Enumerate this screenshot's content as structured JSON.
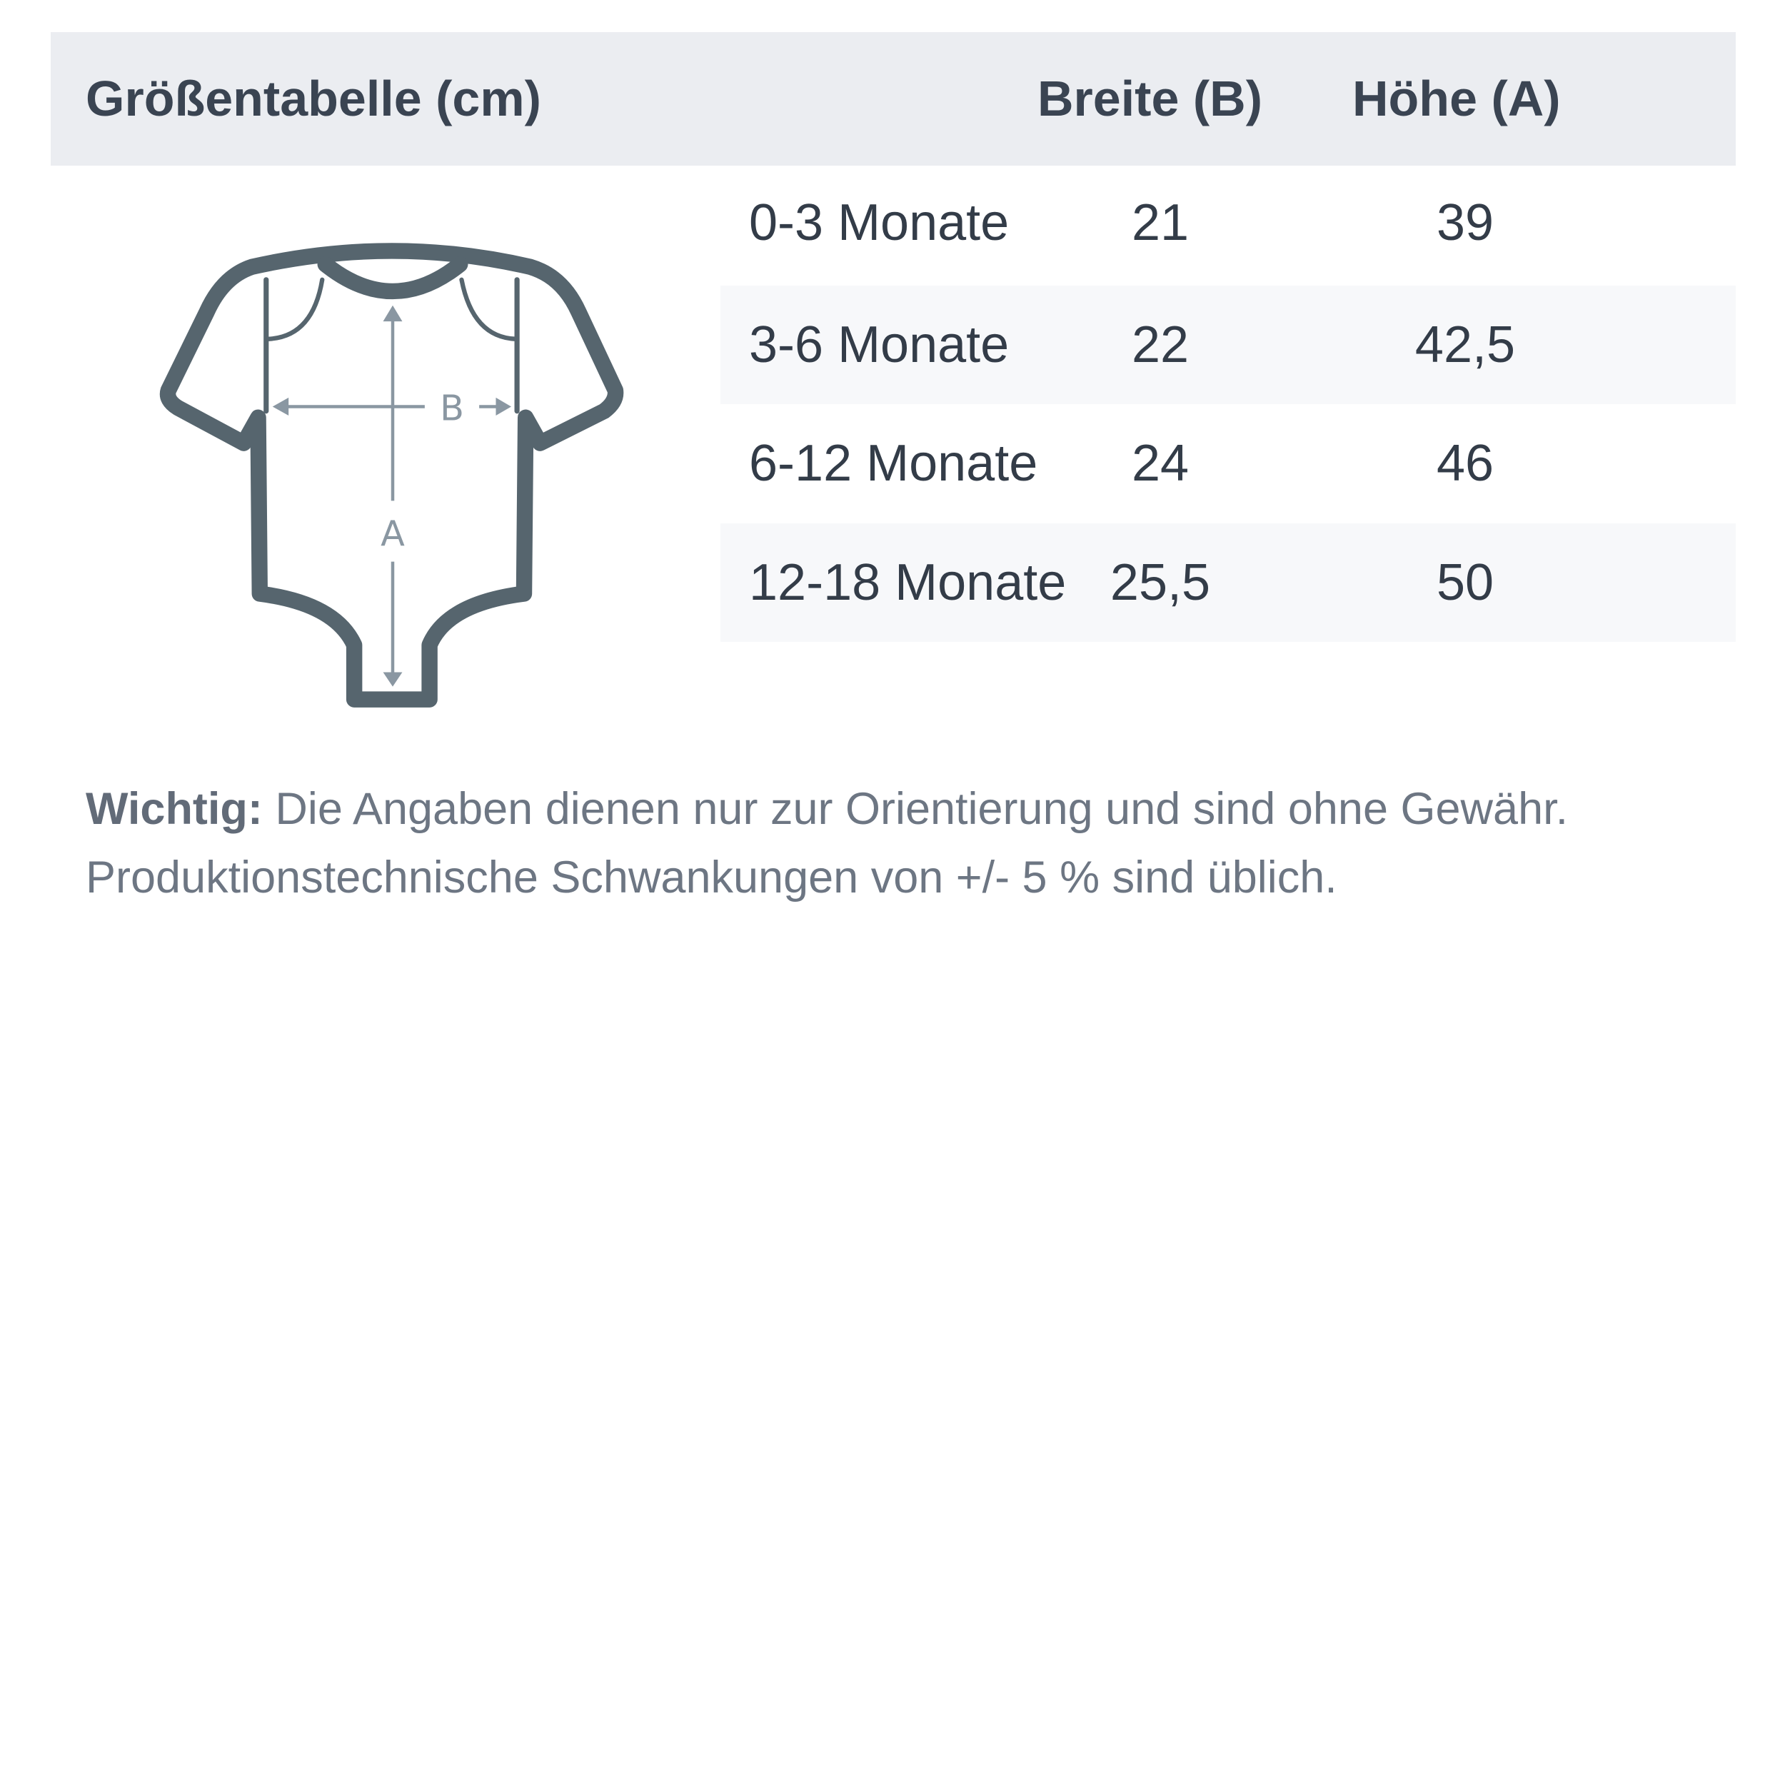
{
  "header": {
    "title": "Größentabelle (cm)",
    "col_width": "Breite (B)",
    "col_height": "Höhe (A)"
  },
  "rows": [
    {
      "size": "0-3 Monate",
      "width": "21",
      "height": "39"
    },
    {
      "size": "3-6 Monate",
      "width": "22",
      "height": "42,5"
    },
    {
      "size": "6-12 Monate",
      "width": "24",
      "height": "46"
    },
    {
      "size": "12-18 Monate",
      "width": "25,5",
      "height": "50"
    }
  ],
  "diagram": {
    "label_width": "B",
    "label_height": "A",
    "icon": "baby-bodysuit-icon"
  },
  "note": {
    "bold": "Wichtig:",
    "line1": " Die Angaben dienen nur zur Orientierung und sind ohne Gewähr.",
    "line2": "Produktionstechnische Schwankungen von +/- 5 % sind üblich."
  },
  "colors": {
    "header_bg": "#ebedf1",
    "row_alt_bg": "#f7f8fa",
    "outline": "#56656e",
    "arrow": "#8a97a2"
  }
}
